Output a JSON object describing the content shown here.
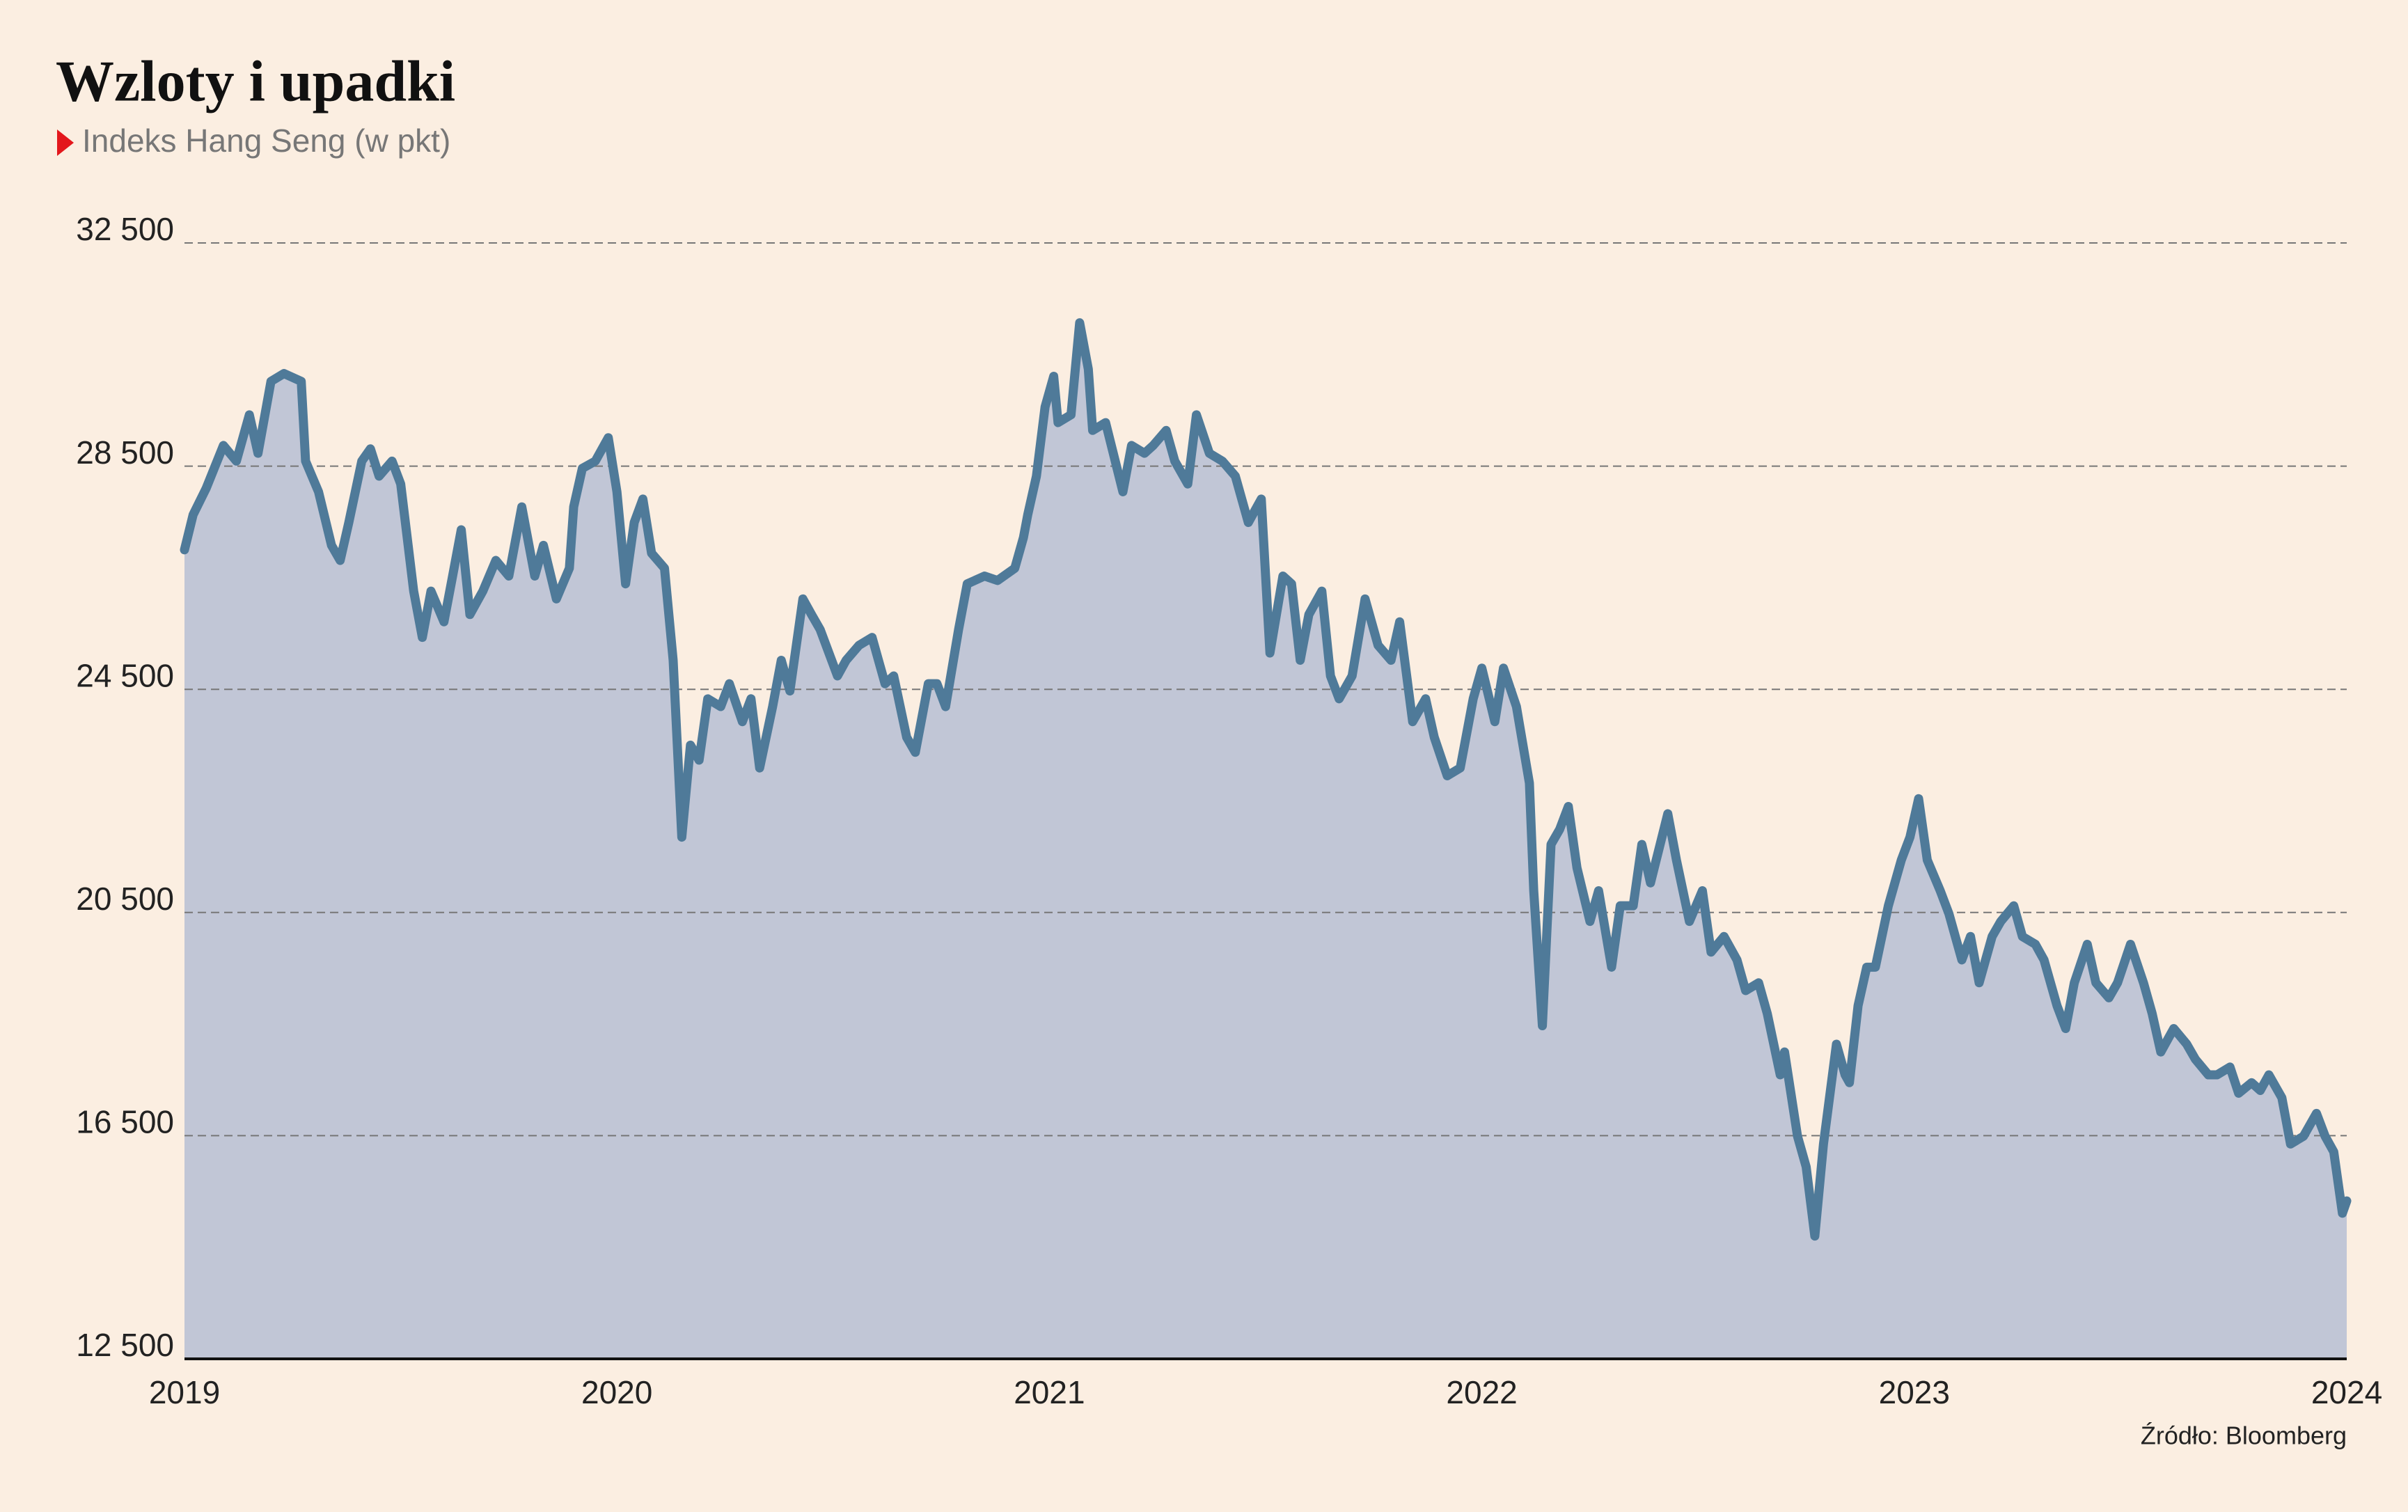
{
  "chart_data": {
    "type": "area",
    "title": "Wzloty i upadki",
    "subtitle": "Indeks Hang Seng (w pkt)",
    "source": "Źródło: Bloomberg",
    "color": "#4f7a99",
    "fill_color": "#c1c6d6",
    "grid": true,
    "xlim": [
      2019,
      2024
    ],
    "xticks": [
      2019,
      2020,
      2021,
      2022,
      2023,
      2024
    ],
    "ylim": [
      12500,
      32500
    ],
    "yticks": [
      {
        "value": 12500,
        "label": "12 500"
      },
      {
        "value": 16500,
        "label": "16 500"
      },
      {
        "value": 20500,
        "label": "20 500"
      },
      {
        "value": 24500,
        "label": "24 500"
      },
      {
        "value": 28500,
        "label": "28 500"
      },
      {
        "value": 32500,
        "label": "32 500"
      }
    ],
    "x": [
      2019.0,
      2019.02,
      2019.05,
      2019.09,
      2019.12,
      2019.15,
      2019.17,
      2019.2,
      2019.23,
      2019.27,
      2019.28,
      2019.31,
      2019.34,
      2019.36,
      2019.38,
      2019.41,
      2019.43,
      2019.45,
      2019.48,
      2019.5,
      2019.53,
      2019.55,
      2019.57,
      2019.6,
      2019.62,
      2019.64,
      2019.66,
      2019.69,
      2019.72,
      2019.75,
      2019.78,
      2019.81,
      2019.83,
      2019.86,
      2019.89,
      2019.9,
      2019.92,
      2019.95,
      2019.98,
      2020.0,
      2020.02,
      2020.04,
      2020.06,
      2020.08,
      2020.11,
      2020.13,
      2020.15,
      2020.17,
      2020.19,
      2020.21,
      2020.24,
      2020.26,
      2020.29,
      2020.31,
      2020.33,
      2020.36,
      2020.38,
      2020.4,
      2020.43,
      2020.45,
      2020.47,
      2020.51,
      2020.53,
      2020.56,
      2020.59,
      2020.62,
      2020.64,
      2020.67,
      2020.69,
      2020.72,
      2020.74,
      2020.76,
      2020.79,
      2020.81,
      2020.85,
      2020.88,
      2020.92,
      2020.94,
      2020.95,
      2020.97,
      2020.99,
      2021.01,
      2021.02,
      2021.05,
      2021.07,
      2021.09,
      2021.1,
      2021.13,
      2021.17,
      2021.19,
      2021.22,
      2021.24,
      2021.27,
      2021.29,
      2021.32,
      2021.34,
      2021.37,
      2021.4,
      2021.43,
      2021.46,
      2021.49,
      2021.51,
      2021.54,
      2021.56,
      2021.58,
      2021.6,
      2021.63,
      2021.65,
      2021.67,
      2021.7,
      2021.73,
      2021.76,
      2021.79,
      2021.81,
      2021.84,
      2021.87,
      2021.89,
      2021.92,
      2021.95,
      2021.98,
      2022.0,
      2022.03,
      2022.05,
      2022.08,
      2022.11,
      2022.12,
      2022.14,
      2022.16,
      2022.18,
      2022.2,
      2022.22,
      2022.25,
      2022.27,
      2022.3,
      2022.32,
      2022.35,
      2022.37,
      2022.39,
      2022.43,
      2022.45,
      2022.48,
      2022.51,
      2022.53,
      2022.56,
      2022.59,
      2022.61,
      2022.64,
      2022.66,
      2022.69,
      2022.7,
      2022.73,
      2022.75,
      2022.77,
      2022.79,
      2022.82,
      2022.84,
      2022.85,
      2022.87,
      2022.89,
      2022.91,
      2022.94,
      2022.97,
      2022.99,
      2023.01,
      2023.03,
      2023.06,
      2023.08,
      2023.11,
      2023.13,
      2023.15,
      2023.18,
      2023.2,
      2023.23,
      2023.25,
      2023.28,
      2023.3,
      2023.33,
      2023.35,
      2023.37,
      2023.4,
      2023.42,
      2023.45,
      2023.47,
      2023.5,
      2023.53,
      2023.55,
      2023.57,
      2023.6,
      2023.63,
      2023.65,
      2023.68,
      2023.7,
      2023.73,
      2023.75,
      2023.78,
      2023.8,
      2023.82,
      2023.85,
      2023.87,
      2023.9,
      2023.93,
      2023.95,
      2023.97,
      2023.99,
      2024.0
    ],
    "values": [
      27000,
      27630,
      28100,
      28870,
      28590,
      29420,
      28730,
      30020,
      30160,
      30020,
      28590,
      28040,
      27080,
      26810,
      27490,
      28590,
      28810,
      28320,
      28590,
      28180,
      26260,
      25430,
      26260,
      25710,
      26530,
      27360,
      25840,
      26260,
      26810,
      26530,
      27770,
      26530,
      27080,
      26120,
      26670,
      27770,
      28460,
      28590,
      29010,
      28040,
      26390,
      27490,
      27910,
      26940,
      26670,
      25020,
      21850,
      23500,
      23230,
      24330,
      24190,
      24600,
      23920,
      24330,
      23090,
      24190,
      25020,
      24470,
      26120,
      25840,
      25570,
      24740,
      25020,
      25290,
      25430,
      24600,
      24740,
      23640,
      23370,
      24600,
      24600,
      24190,
      25570,
      26390,
      26530,
      26450,
      26670,
      27220,
      27630,
      28320,
      29560,
      30110,
      29280,
      29420,
      31070,
      30240,
      29140,
      29280,
      28040,
      28870,
      28730,
      28870,
      29140,
      28590,
      28180,
      29420,
      28730,
      28590,
      28320,
      27490,
      27910,
      25150,
      26530,
      26390,
      25020,
      25840,
      26260,
      24740,
      24330,
      24740,
      26120,
      25290,
      25020,
      25710,
      23920,
      24330,
      23640,
      22950,
      23090,
      24330,
      24880,
      23920,
      24880,
      24190,
      22820,
      20890,
      18470,
      21720,
      21990,
      22400,
      21300,
      20340,
      20890,
      19520,
      20620,
      20620,
      21720,
      21030,
      22270,
      21440,
      20340,
      20890,
      19790,
      20070,
      19650,
      19100,
      19240,
      18690,
      17590,
      18000,
      16490,
      15940,
      14700,
      16350,
      18140,
      17590,
      17450,
      18830,
      19520,
      19520,
      20620,
      21440,
      21850,
      22540,
      21440,
      20890,
      20480,
      19650,
      20070,
      19240,
      20070,
      20340,
      20620,
      20070,
      19930,
      19650,
      18830,
      18420,
      19240,
      19930,
      19240,
      18970,
      19240,
      19930,
      19240,
      18690,
      18000,
      18420,
      18140,
      17870,
      17590,
      17590,
      17730,
      17260,
      17450,
      17310,
      17590,
      17180,
      16350,
      16490,
      16900,
      16490,
      16210,
      15110,
      15330
    ]
  }
}
